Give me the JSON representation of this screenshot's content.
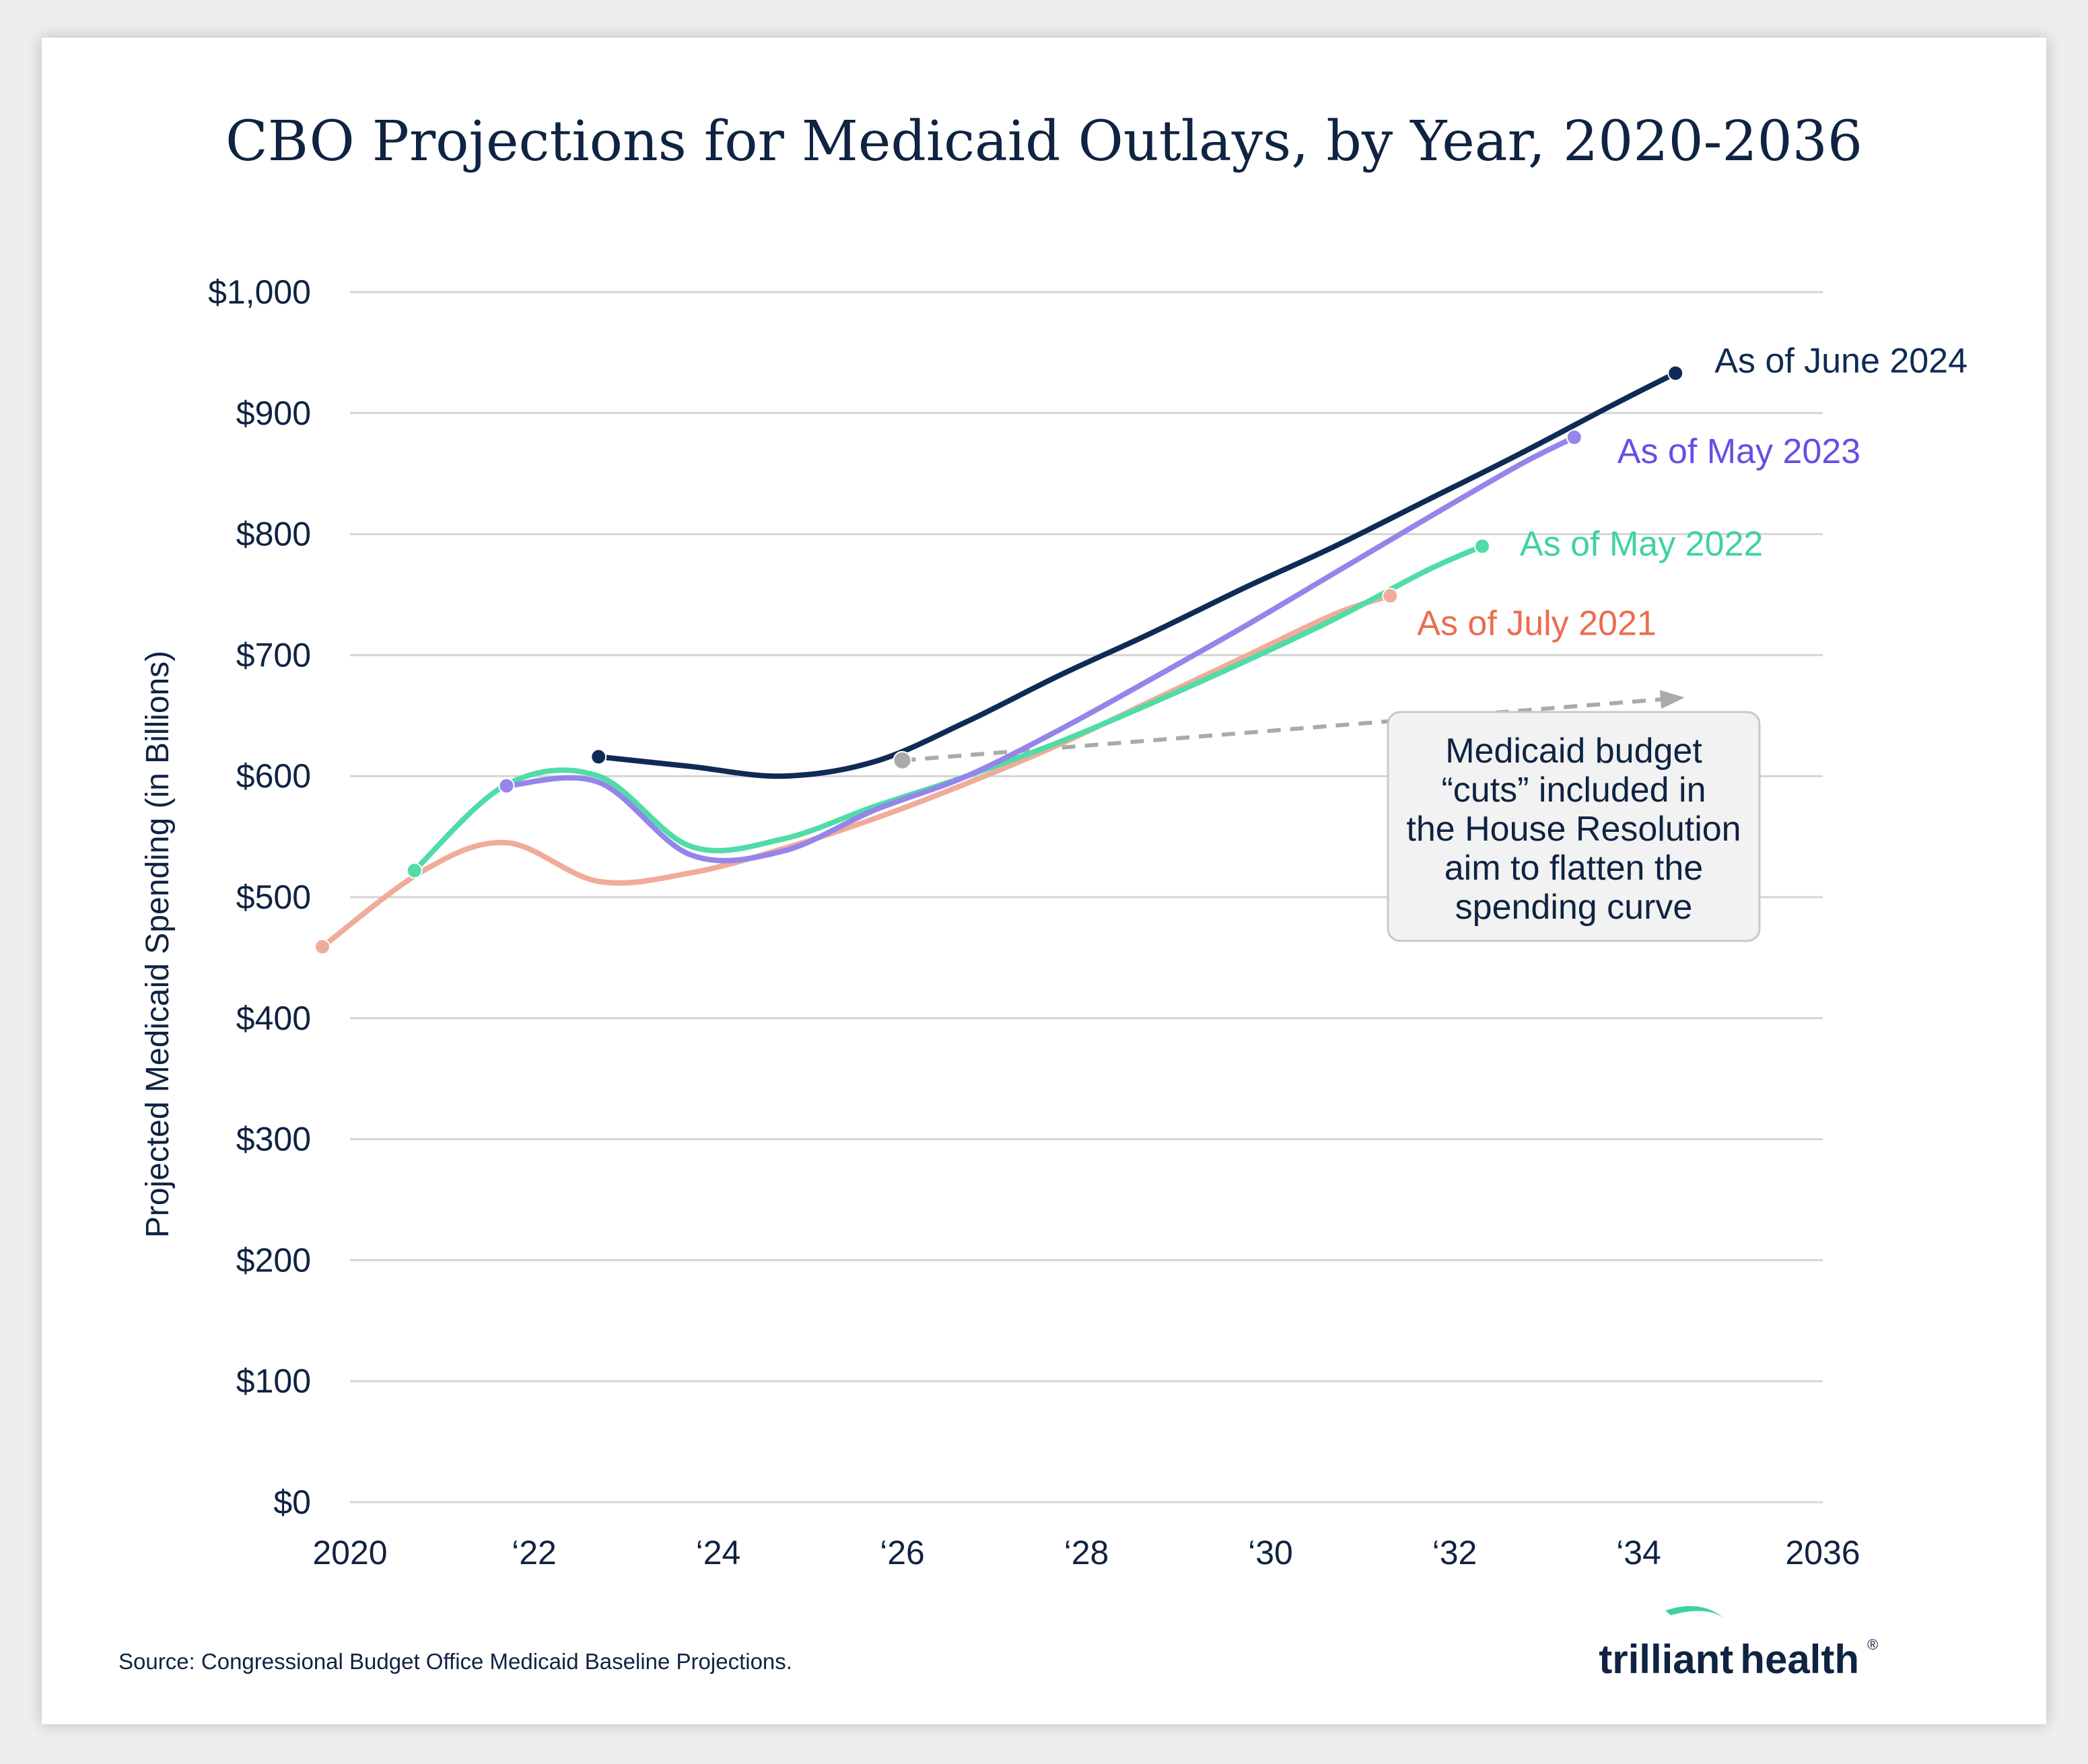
{
  "chart_data": {
    "type": "line",
    "title": "CBO Projections for Medicaid Outlays, by Year, 2020-2036",
    "xlabel": "",
    "ylabel": "Projected Medicaid Spending (in Billions)",
    "xlim": [
      2020,
      2036
    ],
    "ylim": [
      0,
      1000
    ],
    "grid": true,
    "y_ticks": [
      0,
      100,
      200,
      300,
      400,
      500,
      600,
      700,
      800,
      900,
      1000
    ],
    "y_tick_labels": [
      "$0",
      "$100",
      "$200",
      "$300",
      "$400",
      "$500",
      "$600",
      "$700",
      "$800",
      "$900",
      "$1,000"
    ],
    "x_ticks": [
      2020,
      2022,
      2024,
      2026,
      2028,
      2030,
      2032,
      2034,
      2036
    ],
    "x_tick_labels": [
      "2020",
      "‘22",
      "‘24",
      "‘26",
      "‘28",
      "‘30",
      "‘32",
      "‘34",
      "2036"
    ],
    "series": [
      {
        "name": "As of July 2021",
        "color": "#eb6d4e",
        "line_color": "#f0ab99",
        "x": [
          2019.7,
          2020.8,
          2021.7,
          2022.7,
          2023.7,
          2024.7,
          2025.7,
          2026.7,
          2027.7,
          2028.7,
          2029.7,
          2030.7,
          2031.3
        ],
        "values": [
          459,
          522,
          545,
          513,
          520,
          540,
          565,
          594,
          626,
          662,
          698,
          734,
          749
        ]
      },
      {
        "name": "As of May 2022",
        "color": "#3fd39b",
        "line_color": "#4fdca7",
        "x": [
          2020.7,
          2021.7,
          2022.7,
          2023.7,
          2024.7,
          2025.7,
          2026.7,
          2027.7,
          2028.7,
          2029.7,
          2030.7,
          2031.7,
          2032.3
        ],
        "values": [
          522,
          593,
          600,
          542,
          548,
          575,
          600,
          628,
          660,
          694,
          730,
          770,
          790
        ]
      },
      {
        "name": "As of May 2023",
        "color": "#6b4ce6",
        "line_color": "#9485ea",
        "x": [
          2021.7,
          2022.7,
          2023.7,
          2024.7,
          2025.7,
          2026.7,
          2027.7,
          2028.7,
          2029.7,
          2030.7,
          2031.7,
          2032.7,
          2033.3
        ],
        "values": [
          592,
          595,
          535,
          538,
          572,
          600,
          638,
          680,
          723,
          768,
          813,
          857,
          880
        ]
      },
      {
        "name": "As of June 2024",
        "color": "#0f2b55",
        "line_color": "#0f2b55",
        "x": [
          2022.7,
          2023.7,
          2024.7,
          2025.7,
          2026.7,
          2027.7,
          2028.7,
          2029.7,
          2030.7,
          2031.7,
          2032.7,
          2033.7,
          2034.4
        ],
        "values": [
          616,
          608,
          600,
          612,
          645,
          683,
          718,
          755,
          790,
          828,
          866,
          906,
          933
        ]
      }
    ],
    "annotations": [
      {
        "type": "dashed-arrow",
        "color": "#aaaaaa",
        "from": {
          "x": 2026.0,
          "y": 613
        },
        "to": {
          "x": 2034.5,
          "y": 665
        }
      },
      {
        "type": "callout",
        "lines": [
          "Medicaid budget",
          "“cuts” included in",
          "the House Resolution",
          "aim to flatten the",
          "spending curve"
        ]
      }
    ]
  },
  "footer": {
    "source": "Source: Congressional Budget Office Medicaid Baseline Projections.",
    "brand_left": "trilliant",
    "brand_right": "health",
    "brand_mark": "®"
  },
  "colors": {
    "text": "#0f2342",
    "grid": "#d4d4d4",
    "callout_bg": "#f2f2f2",
    "callout_border": "#c8c8c8",
    "brand_swoosh": "#3fd39b"
  }
}
